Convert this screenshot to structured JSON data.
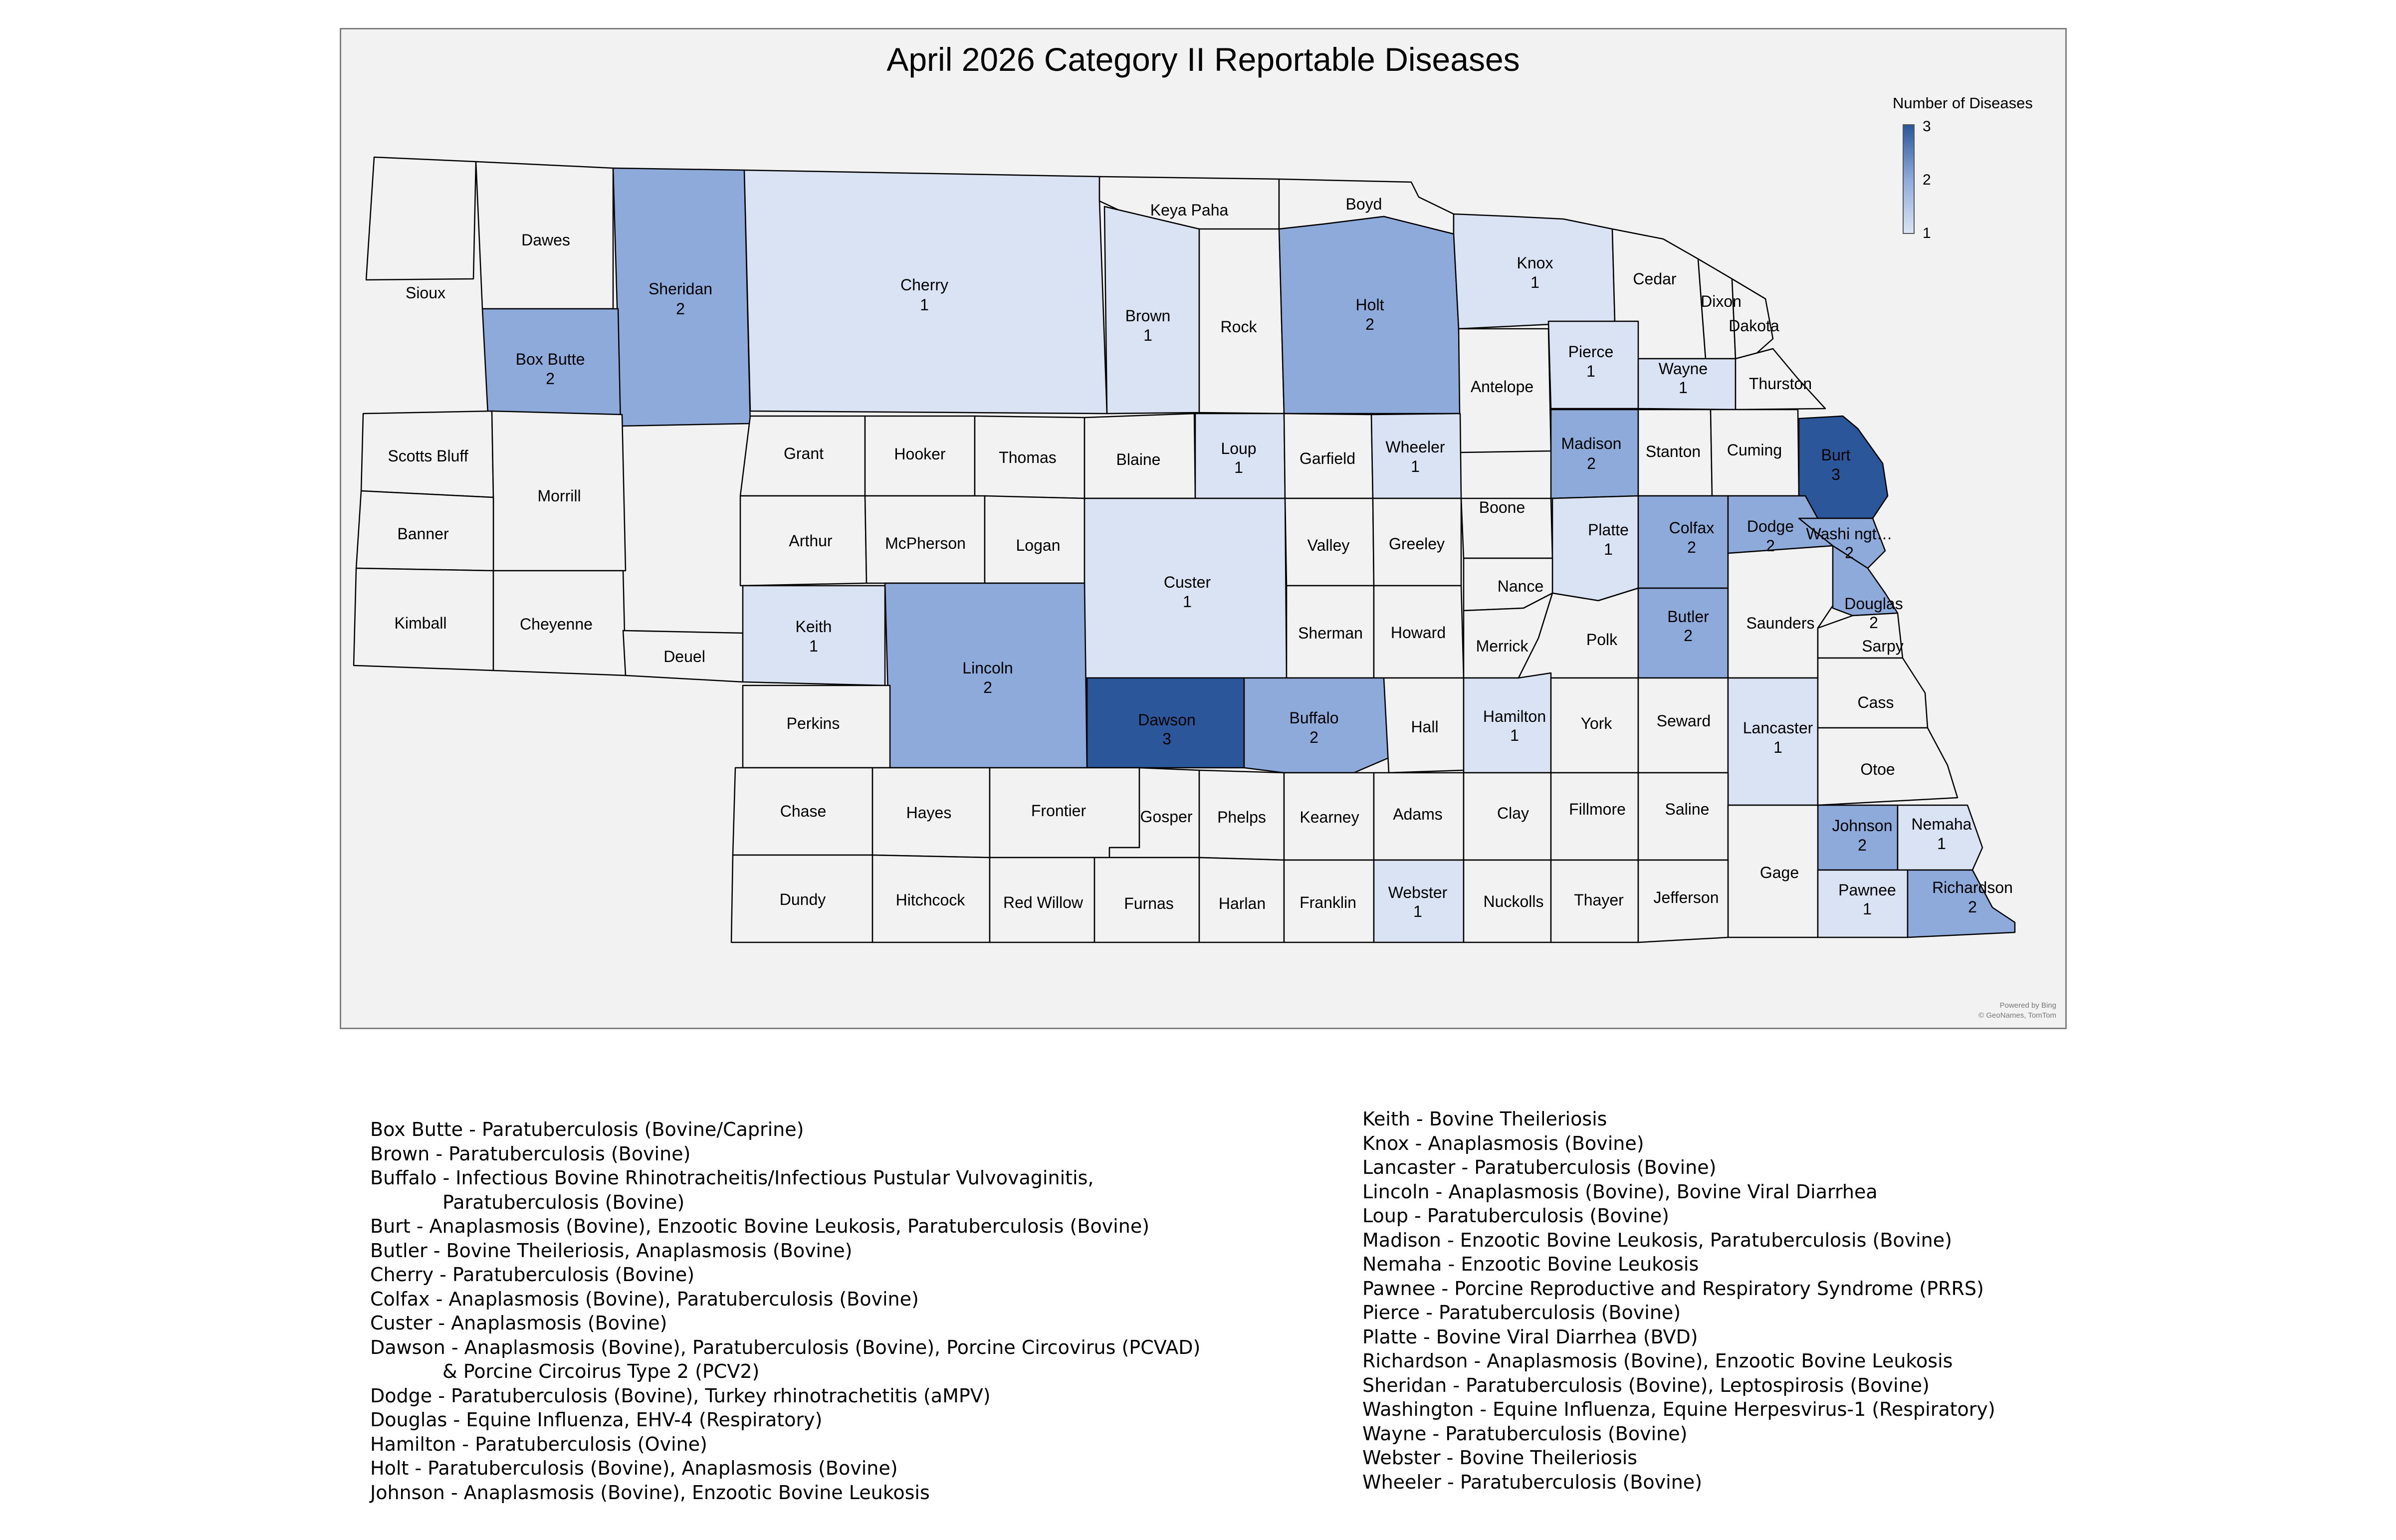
{
  "title": "April 2026 Category II Reportable Diseases",
  "legend": {
    "title": "Number of Diseases",
    "max": "3",
    "mid": "2",
    "min": "1"
  },
  "colors": {
    "c0": "#f2f2f2",
    "c1": "#dae3f3",
    "c2": "#8eaadb",
    "c3": "#2b579a",
    "border": "#000000"
  },
  "attribution": {
    "line1": "Powered by Bing",
    "line2": "© GeoNames, TomTom"
  },
  "counties": [
    {
      "name": "Sioux",
      "count": null
    },
    {
      "name": "Dawes",
      "count": null
    },
    {
      "name": "Sheridan",
      "count": 2
    },
    {
      "name": "Cherry",
      "count": 1
    },
    {
      "name": "Keya Paha",
      "count": null
    },
    {
      "name": "Boyd",
      "count": null
    },
    {
      "name": "Box Butte",
      "count": 2
    },
    {
      "name": "Brown",
      "count": 1
    },
    {
      "name": "Rock",
      "count": null
    },
    {
      "name": "Holt",
      "count": 2
    },
    {
      "name": "Knox",
      "count": 1
    },
    {
      "name": "Cedar",
      "count": null
    },
    {
      "name": "Dixon",
      "count": null
    },
    {
      "name": "Dakota",
      "count": null
    },
    {
      "name": "Antelope",
      "count": null
    },
    {
      "name": "Pierce",
      "count": 1
    },
    {
      "name": "Wayne",
      "count": 1
    },
    {
      "name": "Thurston",
      "count": null
    },
    {
      "name": "Scotts Bluff",
      "count": null
    },
    {
      "name": "Morrill",
      "count": null
    },
    {
      "name": "Grant",
      "count": null
    },
    {
      "name": "Hooker",
      "count": null
    },
    {
      "name": "Thomas",
      "count": null
    },
    {
      "name": "Blaine",
      "count": null
    },
    {
      "name": "Loup",
      "count": 1
    },
    {
      "name": "Garfield",
      "count": null
    },
    {
      "name": "Wheeler",
      "count": 1
    },
    {
      "name": "Madison",
      "count": 2
    },
    {
      "name": "Stanton",
      "count": null
    },
    {
      "name": "Cuming",
      "count": null
    },
    {
      "name": "Burt",
      "count": 3
    },
    {
      "name": "Banner",
      "count": null
    },
    {
      "name": "Arthur",
      "count": null
    },
    {
      "name": "McPherson",
      "count": null
    },
    {
      "name": "Logan",
      "count": null
    },
    {
      "name": "Custer",
      "count": 1
    },
    {
      "name": "Valley",
      "count": null
    },
    {
      "name": "Greeley",
      "count": null
    },
    {
      "name": "Boone",
      "count": null
    },
    {
      "name": "Platte",
      "count": 1
    },
    {
      "name": "Colfax",
      "count": 2
    },
    {
      "name": "Dodge",
      "count": 2
    },
    {
      "name": "Washi ngt…",
      "count": 2
    },
    {
      "name": "Kimball",
      "count": null
    },
    {
      "name": "Cheyenne",
      "count": null
    },
    {
      "name": "Deuel",
      "count": null
    },
    {
      "name": "Keith",
      "count": 1
    },
    {
      "name": "Lincoln",
      "count": 2
    },
    {
      "name": "Sherman",
      "count": null
    },
    {
      "name": "Howard",
      "count": null
    },
    {
      "name": "Nance",
      "count": null
    },
    {
      "name": "Merrick",
      "count": null
    },
    {
      "name": "Polk",
      "count": null
    },
    {
      "name": "Butler",
      "count": 2
    },
    {
      "name": "Saunders",
      "count": null
    },
    {
      "name": "Douglas",
      "count": 2
    },
    {
      "name": "Sarpy",
      "count": null
    },
    {
      "name": "Perkins",
      "count": null
    },
    {
      "name": "Dawson",
      "count": 3
    },
    {
      "name": "Buffalo",
      "count": 2
    },
    {
      "name": "Hall",
      "count": null
    },
    {
      "name": "Hamilton",
      "count": 1
    },
    {
      "name": "York",
      "count": null
    },
    {
      "name": "Seward",
      "count": null
    },
    {
      "name": "Lancaster",
      "count": 1
    },
    {
      "name": "Cass",
      "count": null
    },
    {
      "name": "Otoe",
      "count": null
    },
    {
      "name": "Chase",
      "count": null
    },
    {
      "name": "Hayes",
      "count": null
    },
    {
      "name": "Frontier",
      "count": null
    },
    {
      "name": "Gosper",
      "count": null
    },
    {
      "name": "Phelps",
      "count": null
    },
    {
      "name": "Kearney",
      "count": null
    },
    {
      "name": "Adams",
      "count": null
    },
    {
      "name": "Clay",
      "count": null
    },
    {
      "name": "Fillmore",
      "count": null
    },
    {
      "name": "Saline",
      "count": null
    },
    {
      "name": "Johnson",
      "count": 2
    },
    {
      "name": "Nemaha",
      "count": 1
    },
    {
      "name": "Gage",
      "count": null
    },
    {
      "name": "Dundy",
      "count": null
    },
    {
      "name": "Hitchcock",
      "count": null
    },
    {
      "name": "Red Willow",
      "count": null
    },
    {
      "name": "Furnas",
      "count": null
    },
    {
      "name": "Harlan",
      "count": null
    },
    {
      "name": "Franklin",
      "count": null
    },
    {
      "name": "Webster",
      "count": 1
    },
    {
      "name": "Nuckolls",
      "count": null
    },
    {
      "name": "Thayer",
      "count": null
    },
    {
      "name": "Jefferson",
      "count": null
    },
    {
      "name": "Pawnee",
      "count": 1
    },
    {
      "name": "Richardson",
      "count": 2
    }
  ],
  "disease_list_left": [
    {
      "text": "Box Butte - Paratuberculosis (Bovine/Caprine)",
      "indent": false
    },
    {
      "text": "Brown - Paratuberculosis (Bovine)",
      "indent": false
    },
    {
      "text": "Buffalo - Infectious Bovine Rhinotracheitis/Infectious Pustular Vulvovaginitis,",
      "indent": false
    },
    {
      "text": "Paratuberculosis (Bovine)",
      "indent": true
    },
    {
      "text": "Burt - Anaplasmosis (Bovine), Enzootic Bovine Leukosis, Paratuberculosis (Bovine)",
      "indent": false
    },
    {
      "text": "Butler - Bovine Theileriosis, Anaplasmosis (Bovine)",
      "indent": false
    },
    {
      "text": "Cherry - Paratuberculosis (Bovine)",
      "indent": false
    },
    {
      "text": "Colfax - Anaplasmosis (Bovine), Paratuberculosis (Bovine)",
      "indent": false
    },
    {
      "text": "Custer - Anaplasmosis (Bovine)",
      "indent": false
    },
    {
      "text": "Dawson - Anaplasmosis (Bovine), Paratuberculosis (Bovine), Porcine Circovirus (PCVAD)",
      "indent": false
    },
    {
      "text": "& Porcine Circoirus Type 2 (PCV2)",
      "indent": true
    },
    {
      "text": "Dodge - Paratuberculosis (Bovine), Turkey rhinotrachetitis (aMPV)",
      "indent": false
    },
    {
      "text": "Douglas - Equine Influenza, EHV-4 (Respiratory)",
      "indent": false
    },
    {
      "text": "Hamilton - Paratuberculosis (Ovine)",
      "indent": false
    },
    {
      "text": "Holt - Paratuberculosis (Bovine), Anaplasmosis (Bovine)",
      "indent": false
    },
    {
      "text": "Johnson - Anaplasmosis (Bovine), Enzootic Bovine Leukosis",
      "indent": false
    }
  ],
  "disease_list_right": [
    {
      "text": "Keith - Bovine Theileriosis",
      "indent": false
    },
    {
      "text": "Knox - Anaplasmosis (Bovine)",
      "indent": false
    },
    {
      "text": "Lancaster - Paratuberculosis (Bovine)",
      "indent": false
    },
    {
      "text": "Lincoln - Anaplasmosis (Bovine), Bovine Viral Diarrhea",
      "indent": false
    },
    {
      "text": "Loup - Paratuberculosis (Bovine)",
      "indent": false
    },
    {
      "text": "Madison - Enzootic Bovine Leukosis, Paratuberculosis (Bovine)",
      "indent": false
    },
    {
      "text": "Nemaha - Enzootic Bovine Leukosis",
      "indent": false
    },
    {
      "text": "Pawnee - Porcine Reproductive and Respiratory Syndrome (PRRS)",
      "indent": false
    },
    {
      "text": "Pierce - Paratuberculosis (Bovine)",
      "indent": false
    },
    {
      "text": "Platte - Bovine Viral Diarrhea (BVD)",
      "indent": false
    },
    {
      "text": "Richardson - Anaplasmosis (Bovine), Enzootic Bovine Leukosis",
      "indent": false
    },
    {
      "text": "Sheridan - Paratuberculosis (Bovine), Leptospirosis (Bovine)",
      "indent": false
    },
    {
      "text": "Washington - Equine Influenza, Equine Herpesvirus-1 (Respiratory)",
      "indent": false
    },
    {
      "text": "Wayne - Paratuberculosis (Bovine)",
      "indent": false
    },
    {
      "text": "Webster - Bovine Theileriosis",
      "indent": false
    },
    {
      "text": "Wheeler - Paratuberculosis (Bovine)",
      "indent": false
    }
  ]
}
